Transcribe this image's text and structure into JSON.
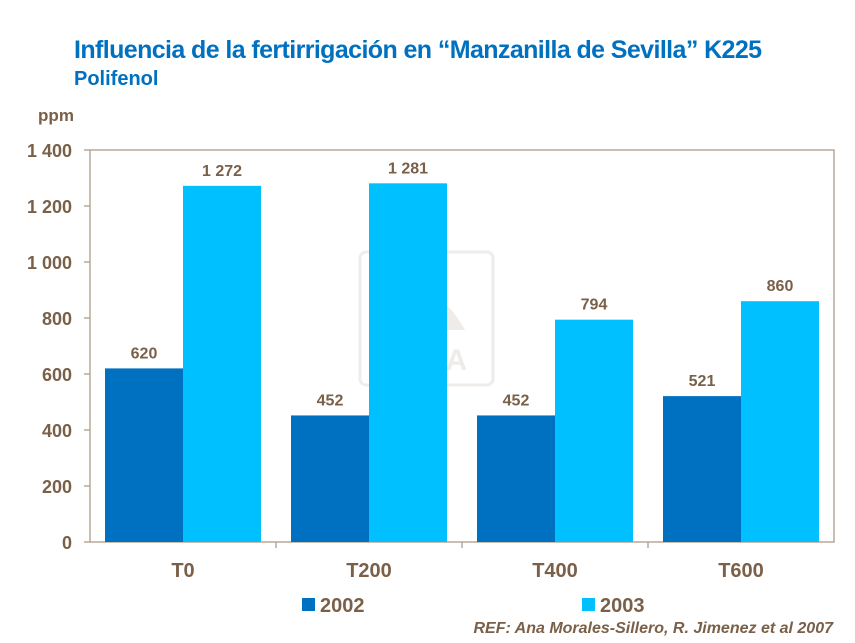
{
  "chart_data": {
    "type": "bar",
    "title": "Influencia de la fertirrigación en “Manzanilla de Sevilla” K225",
    "subtitle": "Polifenol",
    "ylabel": "ppm",
    "xlabel": "",
    "ylim": [
      0,
      1400
    ],
    "yticks": [
      0,
      200,
      400,
      600,
      800,
      1000,
      1200,
      1400
    ],
    "ytick_labels": [
      "0",
      "200",
      "400",
      "600",
      "800",
      "1 000",
      "1 200",
      "1 400"
    ],
    "categories": [
      "T0",
      "T200",
      "T400",
      "T600"
    ],
    "series": [
      {
        "name": "2002",
        "color": "#0070c0",
        "values": [
          620,
          452,
          452,
          521
        ],
        "labels": [
          "620",
          "452",
          "452",
          "521"
        ]
      },
      {
        "name": "2003",
        "color": "#00c0ff",
        "values": [
          1272,
          1281,
          794,
          860
        ],
        "labels": [
          "1 272",
          "1 281",
          "794",
          "860"
        ]
      }
    ],
    "legend_position": "bottom",
    "grid": false
  },
  "watermark": "YARA",
  "reference": "REF: Ana Morales-Sillero,  R. Jimenez et al 2007"
}
